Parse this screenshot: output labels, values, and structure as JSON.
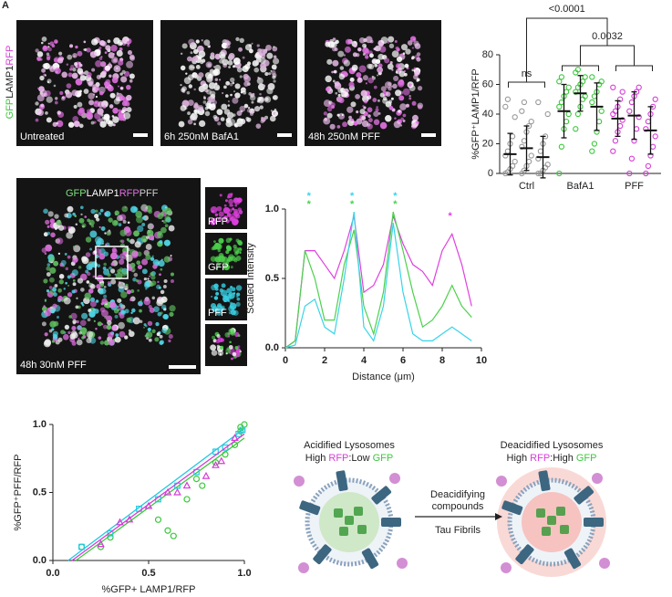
{
  "figure": {
    "panel_label": "A",
    "panel_a": {
      "channel_label": [
        "GFP",
        "LAMP1",
        "RFP"
      ],
      "images": [
        "Untreated",
        "6h 250nM BafA1",
        "48h 250nM PFF"
      ]
    },
    "panel_c": {
      "channel_label": [
        "GFP",
        "LAMP1",
        "RFP",
        "PFF"
      ],
      "caption": "48h 30nM PFF",
      "insets": [
        "RFP",
        "GFP",
        "PFF"
      ]
    },
    "panel_f": {
      "left_title": "Acidified Lysosomes",
      "left_ratio": [
        "High",
        "RFP",
        ":Low",
        "GFP"
      ],
      "right_title": "Deacidified Lysosomes",
      "right_ratio": [
        "High",
        "RFP",
        ":High",
        "GFP"
      ],
      "arrow_above": [
        "Deacidifying",
        "compounds"
      ],
      "arrow_below": "Tau Fibrils"
    }
  },
  "chart_data": [
    {
      "type": "dotplot",
      "ylabel": "%GFP⁺LAMP1/RFP",
      "ylim": [
        0,
        80
      ],
      "yticks": [
        0,
        20,
        40,
        60,
        80
      ],
      "categories": [
        "Ctrl",
        "BafA1",
        "PFF"
      ],
      "comparisons": [
        "<0.0001",
        "0.0032",
        "ns"
      ],
      "groups": [
        {
          "color": "#9a9a9a",
          "replicates": [
            {
              "mean": 13,
              "sd": 14,
              "points": [
                0,
                1,
                3,
                5,
                8,
                12,
                15,
                20,
                25,
                38,
                45,
                50
              ]
            },
            {
              "mean": 17,
              "sd": 15,
              "points": [
                0,
                2,
                5,
                8,
                12,
                18,
                22,
                28,
                32,
                35,
                42,
                48
              ]
            },
            {
              "mean": 11,
              "sd": 14,
              "points": [
                0,
                0,
                2,
                4,
                6,
                10,
                15,
                20,
                25,
                40,
                48
              ]
            }
          ]
        },
        {
          "color": "#3cc83c",
          "replicates": [
            {
              "mean": 42,
              "sd": 18,
              "points": [
                0,
                18,
                30,
                35,
                40,
                45,
                48,
                52,
                55,
                58,
                62,
                65
              ]
            },
            {
              "mean": 54,
              "sd": 12,
              "points": [
                30,
                40,
                45,
                50,
                52,
                55,
                58,
                60,
                62,
                65,
                68,
                70
              ]
            },
            {
              "mean": 45,
              "sd": 16,
              "points": [
                15,
                20,
                28,
                35,
                42,
                48,
                52,
                55,
                60,
                62,
                65
              ]
            }
          ]
        },
        {
          "color": "#d63cd6",
          "replicates": [
            {
              "mean": 37,
              "sd": 12,
              "points": [
                15,
                22,
                28,
                32,
                36,
                40,
                42,
                45,
                50,
                55,
                58
              ]
            },
            {
              "mean": 39,
              "sd": 16,
              "points": [
                0,
                10,
                22,
                30,
                38,
                42,
                48,
                52,
                55,
                58
              ]
            },
            {
              "mean": 29,
              "sd": 16,
              "points": [
                0,
                5,
                12,
                18,
                25,
                30,
                35,
                40,
                45,
                50
              ]
            }
          ]
        }
      ]
    },
    {
      "type": "line",
      "xlabel": "Distance (μm)",
      "ylabel": "Scaled Intensity",
      "xlim": [
        0,
        10
      ],
      "ylim": [
        0,
        1
      ],
      "xticks": [
        0,
        2,
        4,
        6,
        8,
        10
      ],
      "yticks": [
        {
          "value": 0,
          "label": "0.0"
        },
        {
          "value": 0.5,
          "label": "0.5"
        },
        {
          "value": 1,
          "label": "1.0"
        }
      ],
      "x": [
        0,
        0.5,
        1,
        1.5,
        2,
        2.5,
        3,
        3.5,
        4,
        4.5,
        5,
        5.5,
        6,
        6.5,
        7,
        7.5,
        8,
        8.5,
        9,
        9.5
      ],
      "series": [
        {
          "color": "#e040e0",
          "values": [
            0,
            0.05,
            0.7,
            0.7,
            0.6,
            0.5,
            0.7,
            0.95,
            0.4,
            0.45,
            0.6,
            0.95,
            0.75,
            0.6,
            0.55,
            0.45,
            0.7,
            0.82,
            0.6,
            0.3
          ]
        },
        {
          "color": "#4cd14c",
          "values": [
            0,
            0.05,
            0.7,
            0.5,
            0.2,
            0.2,
            0.6,
            0.85,
            0.3,
            0.1,
            0.4,
            0.98,
            0.7,
            0.4,
            0.15,
            0.2,
            0.3,
            0.45,
            0.3,
            0.22
          ]
        },
        {
          "color": "#38d4e8",
          "values": [
            0,
            0.02,
            0.3,
            0.35,
            0.15,
            0.1,
            0.5,
            0.98,
            0.15,
            0.05,
            0.3,
            0.9,
            0.4,
            0.1,
            0.05,
            0.05,
            0.1,
            0.15,
            0.1,
            0.05
          ]
        }
      ],
      "peak_marks": [
        {
          "x": 1.2,
          "label": "*",
          "color": "#38d4e8"
        },
        {
          "x": 1.2,
          "label": "*",
          "color": "#4cd14c"
        },
        {
          "x": 3.4,
          "label": "*",
          "color": "#38d4e8"
        },
        {
          "x": 3.4,
          "label": "*",
          "color": "#4cd14c"
        },
        {
          "x": 5.6,
          "label": "*",
          "color": "#38d4e8"
        },
        {
          "x": 5.6,
          "label": "*",
          "color": "#4cd14c"
        },
        {
          "x": 8.4,
          "label": "*",
          "color": "#e040e0"
        }
      ]
    },
    {
      "type": "scatter",
      "xlabel": "%GFP+ LAMP1/RFP",
      "ylabel": "%GFP⁺PFF/RFP",
      "xlim": [
        0,
        1
      ],
      "ylim": [
        0,
        1
      ],
      "xticks": [
        {
          "value": 0,
          "label": "0.0"
        },
        {
          "value": 0.5,
          "label": "0.5"
        },
        {
          "value": 1,
          "label": "1.0"
        }
      ],
      "yticks": [
        {
          "value": 0,
          "label": "0.0"
        },
        {
          "value": 0.5,
          "label": "0.5"
        },
        {
          "value": 1,
          "label": "1.0"
        }
      ],
      "series": [
        {
          "color": "#3cc83c",
          "marker": "circle",
          "x": [
            0.15,
            0.25,
            0.3,
            0.55,
            0.6,
            0.63,
            0.7,
            0.75,
            0.78,
            0.85,
            0.9,
            0.95,
            0.98,
            1.0,
            0.98
          ],
          "y": [
            0.1,
            0.1,
            0.17,
            0.3,
            0.22,
            0.18,
            0.45,
            0.6,
            0.55,
            0.72,
            0.78,
            0.85,
            0.95,
            1.0,
            0.98
          ],
          "fit": {
            "x": [
              0.12,
              1
            ],
            "y": [
              0,
              0.9
            ]
          }
        },
        {
          "color": "#22c8e0",
          "marker": "square",
          "x": [
            0.15,
            0.3,
            0.45,
            0.55,
            0.65,
            0.75,
            0.85,
            0.9,
            0.97,
            0.99
          ],
          "y": [
            0.1,
            0.2,
            0.38,
            0.45,
            0.55,
            0.65,
            0.8,
            0.83,
            0.93,
            0.96
          ],
          "fit": {
            "x": [
              0.08,
              1
            ],
            "y": [
              0,
              0.97
            ]
          }
        },
        {
          "color": "#d63cd6",
          "marker": "triangle",
          "x": [
            0.25,
            0.35,
            0.4,
            0.5,
            0.6,
            0.65,
            0.7,
            0.8,
            0.85,
            0.88,
            0.95
          ],
          "y": [
            0.12,
            0.28,
            0.3,
            0.4,
            0.5,
            0.5,
            0.55,
            0.62,
            0.7,
            0.73,
            0.9
          ],
          "fit": {
            "x": [
              0.1,
              1
            ],
            "y": [
              0,
              0.93
            ]
          }
        }
      ]
    }
  ]
}
